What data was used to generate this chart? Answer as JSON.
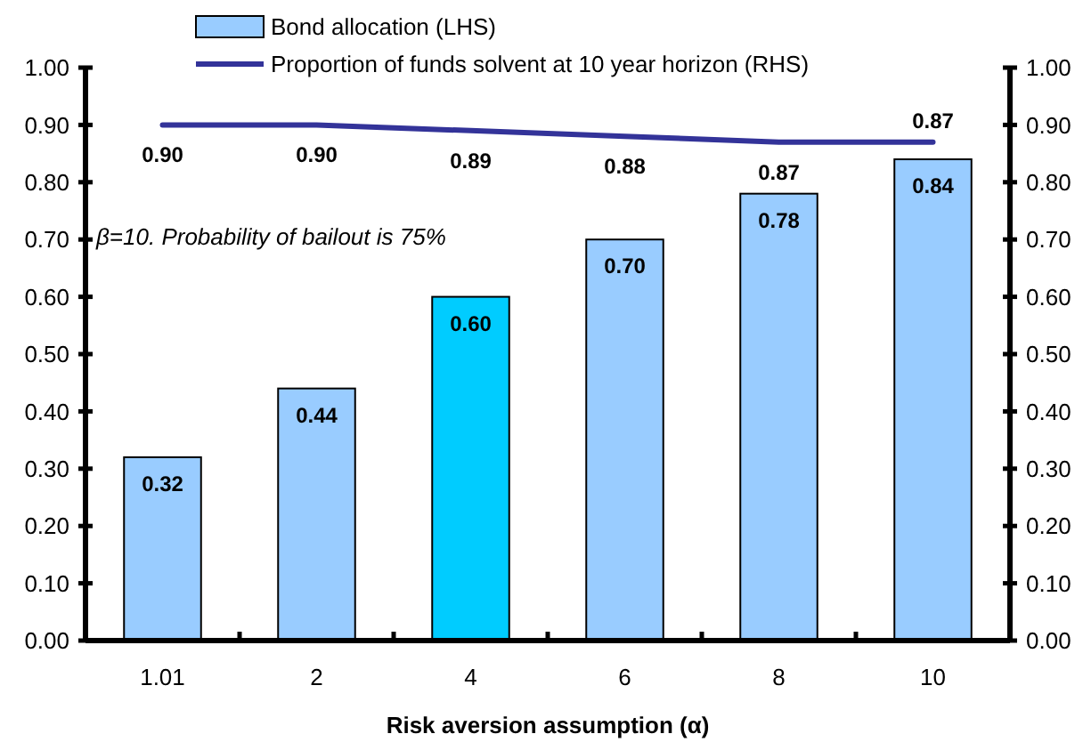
{
  "chart_data": {
    "type": "bar",
    "xlabel": "Risk aversion assumption (α)",
    "categories": [
      "1.01",
      "2",
      "4",
      "6",
      "8",
      "10"
    ],
    "series": [
      {
        "name": "Bond allocation (LHS)",
        "value_labels": [
          "0.32",
          "0.44",
          "0.60",
          "0.70",
          "0.78",
          "0.84"
        ],
        "colors": [
          "#99ccff",
          "#99ccff",
          "#00ccff",
          "#99ccff",
          "#99ccff",
          "#99ccff"
        ],
        "color": "#99ccff",
        "values": [
          0.32,
          0.44,
          0.6,
          0.7,
          0.78,
          0.84
        ]
      },
      {
        "name": "Proportion of funds solvent at 10 year horizon (RHS)",
        "type": "line",
        "axis": "y2",
        "color": "#333399",
        "values": [
          0.9,
          0.9,
          0.89,
          0.88,
          0.87,
          0.87
        ],
        "value_labels": [
          "0.90",
          "0.90",
          "0.89",
          "0.88",
          "0.87",
          "0.87"
        ]
      }
    ],
    "ylim": [
      0,
      1
    ],
    "yticks": [
      {
        "value": 0,
        "label": "0.00"
      },
      {
        "value": 0.1,
        "label": "0.10"
      },
      {
        "value": 0.2,
        "label": "0.20"
      },
      {
        "value": 0.3,
        "label": "0.30"
      },
      {
        "value": 0.4,
        "label": "0.40"
      },
      {
        "value": 0.5,
        "label": "0.50"
      },
      {
        "value": 0.6,
        "label": "0.60"
      },
      {
        "value": 0.7,
        "label": "0.70"
      },
      {
        "value": 0.8,
        "label": "0.80"
      },
      {
        "value": 0.9,
        "label": "0.90"
      },
      {
        "value": 1,
        "label": "1.00"
      }
    ],
    "y2lim": [
      0,
      1
    ],
    "y2ticks": [
      {
        "value": 0,
        "label": "0.00"
      },
      {
        "value": 0.1,
        "label": "0.10"
      },
      {
        "value": 0.2,
        "label": "0.20"
      },
      {
        "value": 0.3,
        "label": "0.30"
      },
      {
        "value": 0.4,
        "label": "0.40"
      },
      {
        "value": 0.5,
        "label": "0.50"
      },
      {
        "value": 0.6,
        "label": "0.60"
      },
      {
        "value": 0.7,
        "label": "0.70"
      },
      {
        "value": 0.8,
        "label": "0.80"
      },
      {
        "value": 0.9,
        "label": "0.90"
      },
      {
        "value": 1,
        "label": "1.00"
      }
    ],
    "annotations": [
      "β=10. Probability of bailout is 75%"
    ],
    "legend": "top",
    "marker": "none",
    "line_style": "solid"
  }
}
